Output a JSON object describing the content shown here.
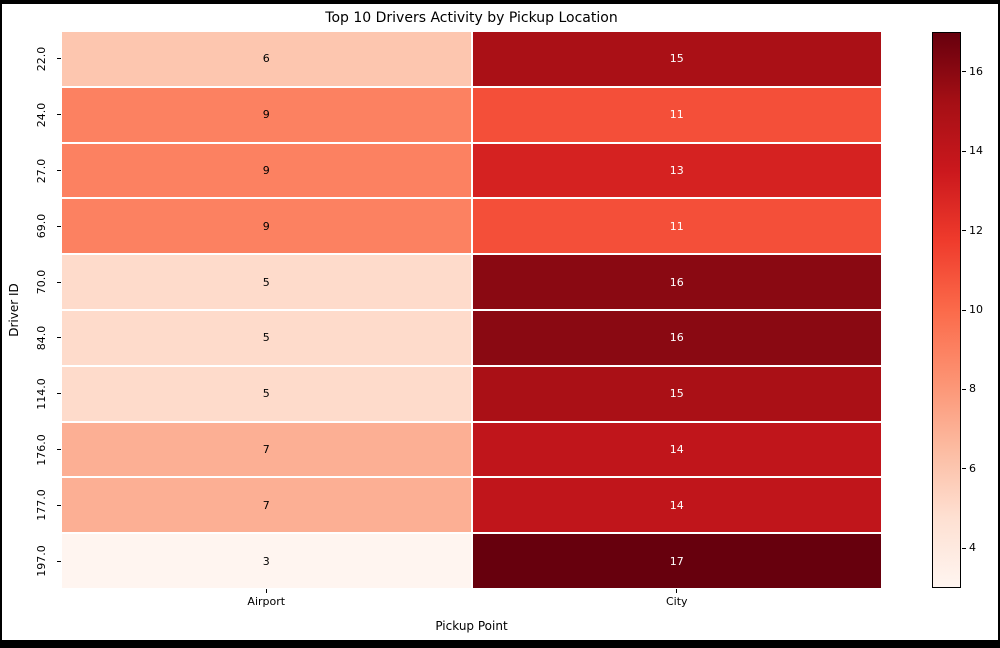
{
  "chart_data": {
    "type": "heatmap",
    "title": "Top 10 Drivers Activity by Pickup Location",
    "xlabel": "Pickup Point",
    "ylabel": "Driver ID",
    "columns": [
      "Airport",
      "City"
    ],
    "rows": [
      "22.0",
      "24.0",
      "27.0",
      "69.0",
      "70.0",
      "84.0",
      "114.0",
      "176.0",
      "177.0",
      "197.0"
    ],
    "values": [
      [
        6,
        15
      ],
      [
        9,
        11
      ],
      [
        9,
        13
      ],
      [
        9,
        11
      ],
      [
        5,
        16
      ],
      [
        5,
        16
      ],
      [
        5,
        15
      ],
      [
        7,
        14
      ],
      [
        7,
        14
      ],
      [
        3,
        17
      ]
    ],
    "vmin": 3,
    "vmax": 17,
    "colormap": "Reds",
    "colorbar_ticks": [
      4,
      6,
      8,
      10,
      12,
      14,
      16
    ],
    "legend_position": "colorbar-right",
    "grid_lines": "white-2px"
  },
  "colors": {
    "background": "#ffffff",
    "frame": "#000000",
    "text": "#000000",
    "annotation_light": "#ffffff",
    "annotation_dark": "#000000",
    "reds_stops": [
      "#fff5f0",
      "#fee0d2",
      "#fcbba1",
      "#fc9272",
      "#fb6a4a",
      "#ef3b2c",
      "#cb181d",
      "#a50f15",
      "#67000d"
    ]
  }
}
